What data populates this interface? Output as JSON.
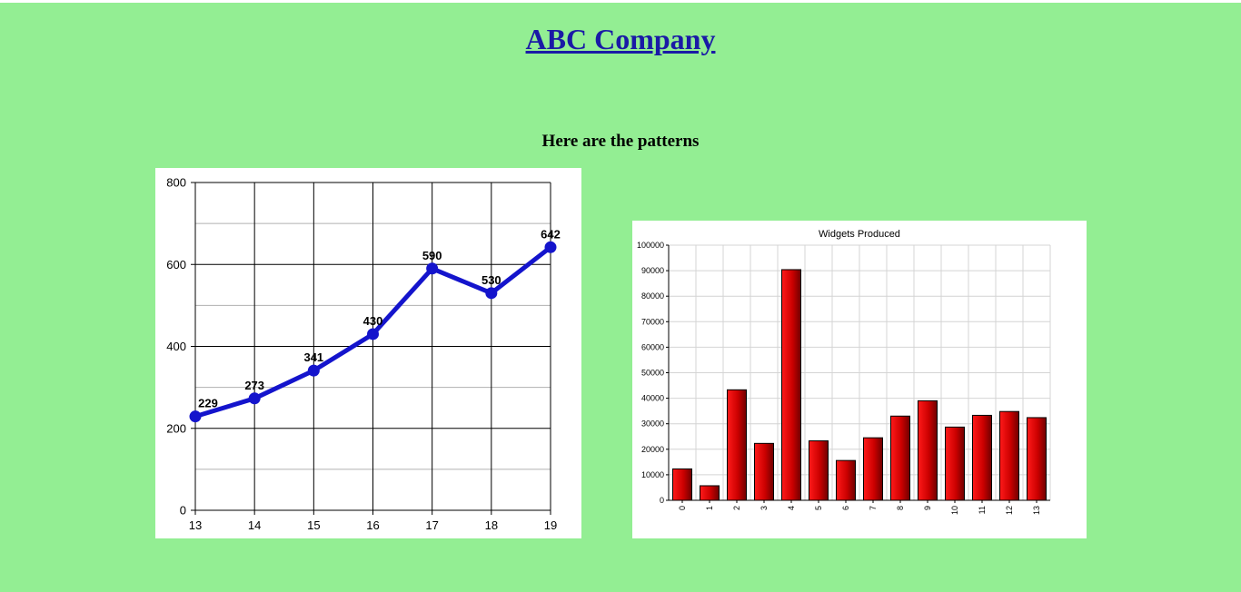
{
  "page": {
    "title": "ABC Company",
    "subtitle": "Here are the patterns",
    "background_color": "#93EE93"
  },
  "chart_data": [
    {
      "type": "line",
      "title": "",
      "xlabel": "",
      "ylabel": "",
      "x": [
        13,
        14,
        15,
        16,
        17,
        18,
        19
      ],
      "series": [
        {
          "values": [
            229,
            273,
            341,
            430,
            590,
            530,
            642
          ],
          "color": "#1414cc"
        }
      ],
      "data_labels": [
        "229",
        "273",
        "341",
        "430",
        "590",
        "530",
        "642"
      ],
      "x_tick_labels": [
        "13",
        "14",
        "15",
        "16",
        "17",
        "18",
        "19"
      ],
      "y_tick_labels": [
        "0",
        "200",
        "400",
        "600",
        "800"
      ],
      "y_ticks": [
        0,
        200,
        400,
        600,
        800
      ],
      "ylim": [
        0,
        800
      ],
      "grid": true,
      "legend": "none"
    },
    {
      "type": "bar",
      "title": "Widgets Produced",
      "xlabel": "",
      "ylabel": "",
      "categories": [
        "0",
        "1",
        "2",
        "3",
        "4",
        "5",
        "6",
        "7",
        "8",
        "9",
        "10",
        "11",
        "12",
        "13"
      ],
      "values": [
        12300,
        5700,
        43300,
        22300,
        90400,
        23300,
        15600,
        24500,
        33000,
        39000,
        28700,
        33300,
        34800,
        32400
      ],
      "y_tick_labels": [
        "0",
        "10000",
        "20000",
        "30000",
        "40000",
        "50000",
        "60000",
        "70000",
        "80000",
        "90000",
        "100000"
      ],
      "y_ticks": [
        0,
        10000,
        20000,
        30000,
        40000,
        50000,
        60000,
        70000,
        80000,
        90000,
        100000
      ],
      "ylim": [
        0,
        100000
      ],
      "bar_color": "#cc0000",
      "grid": true,
      "legend": "none"
    }
  ]
}
